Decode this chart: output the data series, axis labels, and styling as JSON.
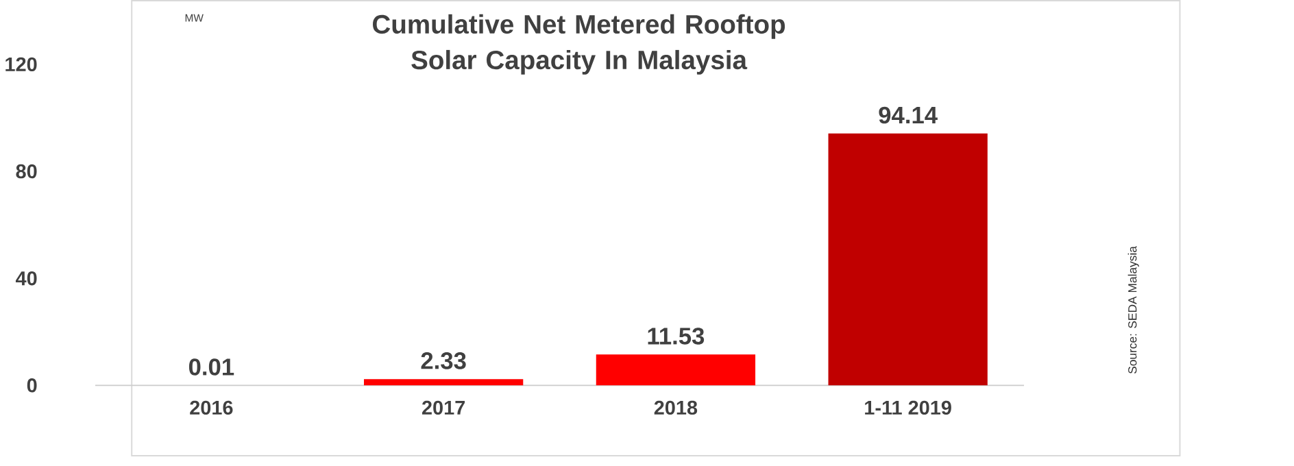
{
  "chart_data": {
    "type": "bar",
    "title": "Cumulative Net Metered Rooftop Solar Capacity In Malaysia",
    "ylabel": "MW",
    "categories": [
      "2016",
      "2017",
      "2018",
      "1-11 2019"
    ],
    "values": [
      0.01,
      2.33,
      11.53,
      94.14
    ],
    "colors": [
      "#ff0000",
      "#ff0000",
      "#ff0000",
      "#c00000"
    ],
    "ylim": [
      0,
      120
    ],
    "yticks": [
      0,
      40,
      80,
      120
    ],
    "data_labels": true,
    "annotations": [
      "Source: SEDA Malaysia"
    ]
  }
}
